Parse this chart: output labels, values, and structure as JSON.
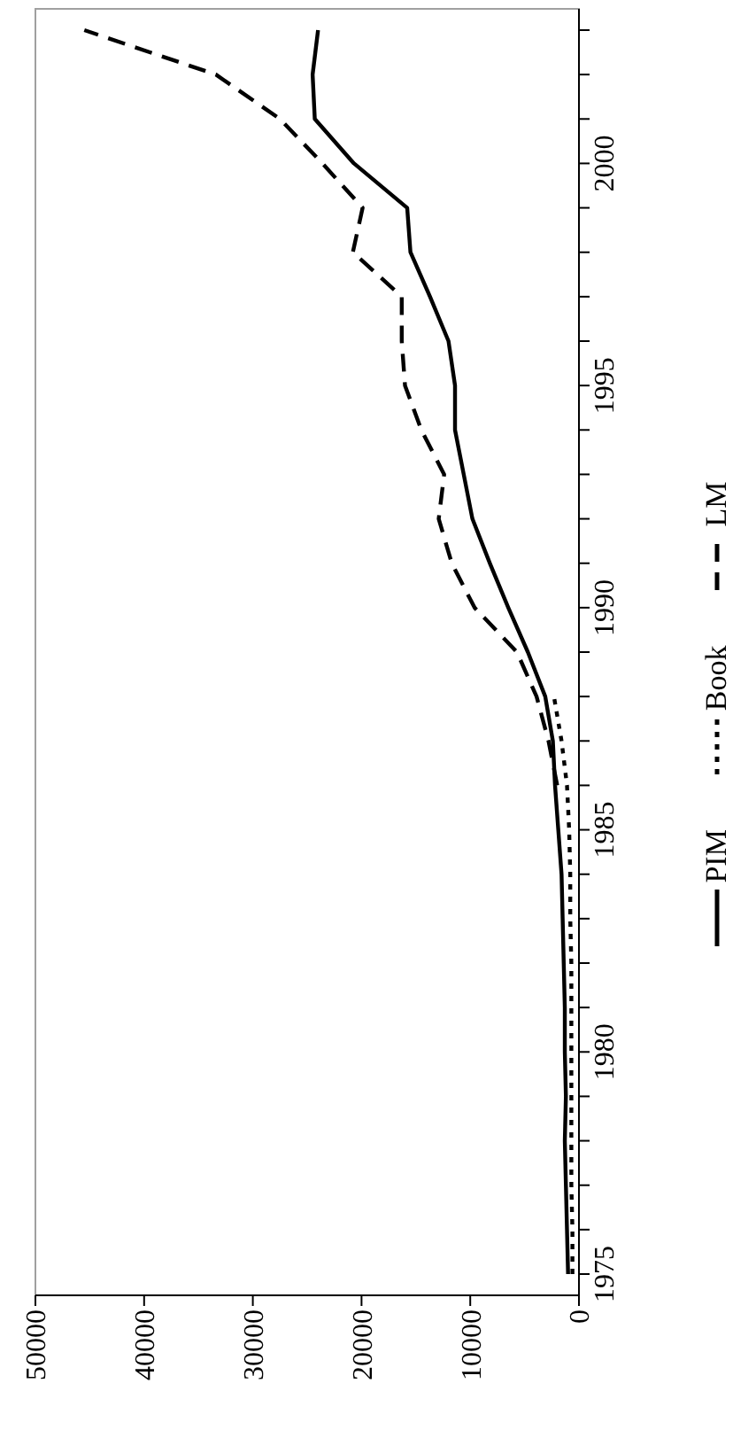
{
  "chart_data": {
    "type": "line",
    "orientation": "horizontal",
    "categories": [
      null,
      null,
      null,
      "2000",
      null,
      null,
      null,
      null,
      "1995",
      null,
      null,
      null,
      null,
      "1990",
      null,
      null,
      null,
      null,
      "1985",
      null,
      null,
      null,
      null,
      "1980",
      null,
      null,
      null,
      null,
      "1975"
    ],
    "series": [
      {
        "name": "PIM",
        "color": "#000000",
        "line_style": "solid",
        "values": [
          24000,
          24500,
          24300,
          20700,
          15800,
          15500,
          13700,
          12000,
          11400,
          11400,
          10600,
          9800,
          8200,
          6500,
          4700,
          3100,
          2400,
          2200,
          1900,
          1600,
          1500,
          1400,
          1300,
          1300,
          1200,
          1300,
          1200,
          1100,
          1000
        ]
      },
      {
        "name": "Book",
        "color": "#000000",
        "line_style": "dotted",
        "values": [
          null,
          null,
          null,
          null,
          null,
          null,
          null,
          null,
          null,
          null,
          null,
          null,
          null,
          null,
          null,
          2300,
          1600,
          1100,
          900,
          800,
          800,
          700,
          700,
          700,
          700,
          700,
          700,
          600,
          600
        ]
      },
      {
        "name": "LM",
        "color": "#000000",
        "line_style": "dashed",
        "values": [
          45500,
          33400,
          27500,
          23600,
          19900,
          20800,
          16300,
          16300,
          16000,
          14500,
          12400,
          12900,
          11700,
          9600,
          5700,
          3900,
          2800,
          2000,
          null,
          null,
          null,
          null,
          null,
          null,
          null,
          null,
          null,
          null,
          null
        ]
      }
    ],
    "xlim": [
      50000,
      0
    ],
    "xticks": [
      0,
      10000,
      20000,
      30000,
      40000,
      50000
    ],
    "grid": false,
    "legend": "right",
    "marker": "none"
  }
}
